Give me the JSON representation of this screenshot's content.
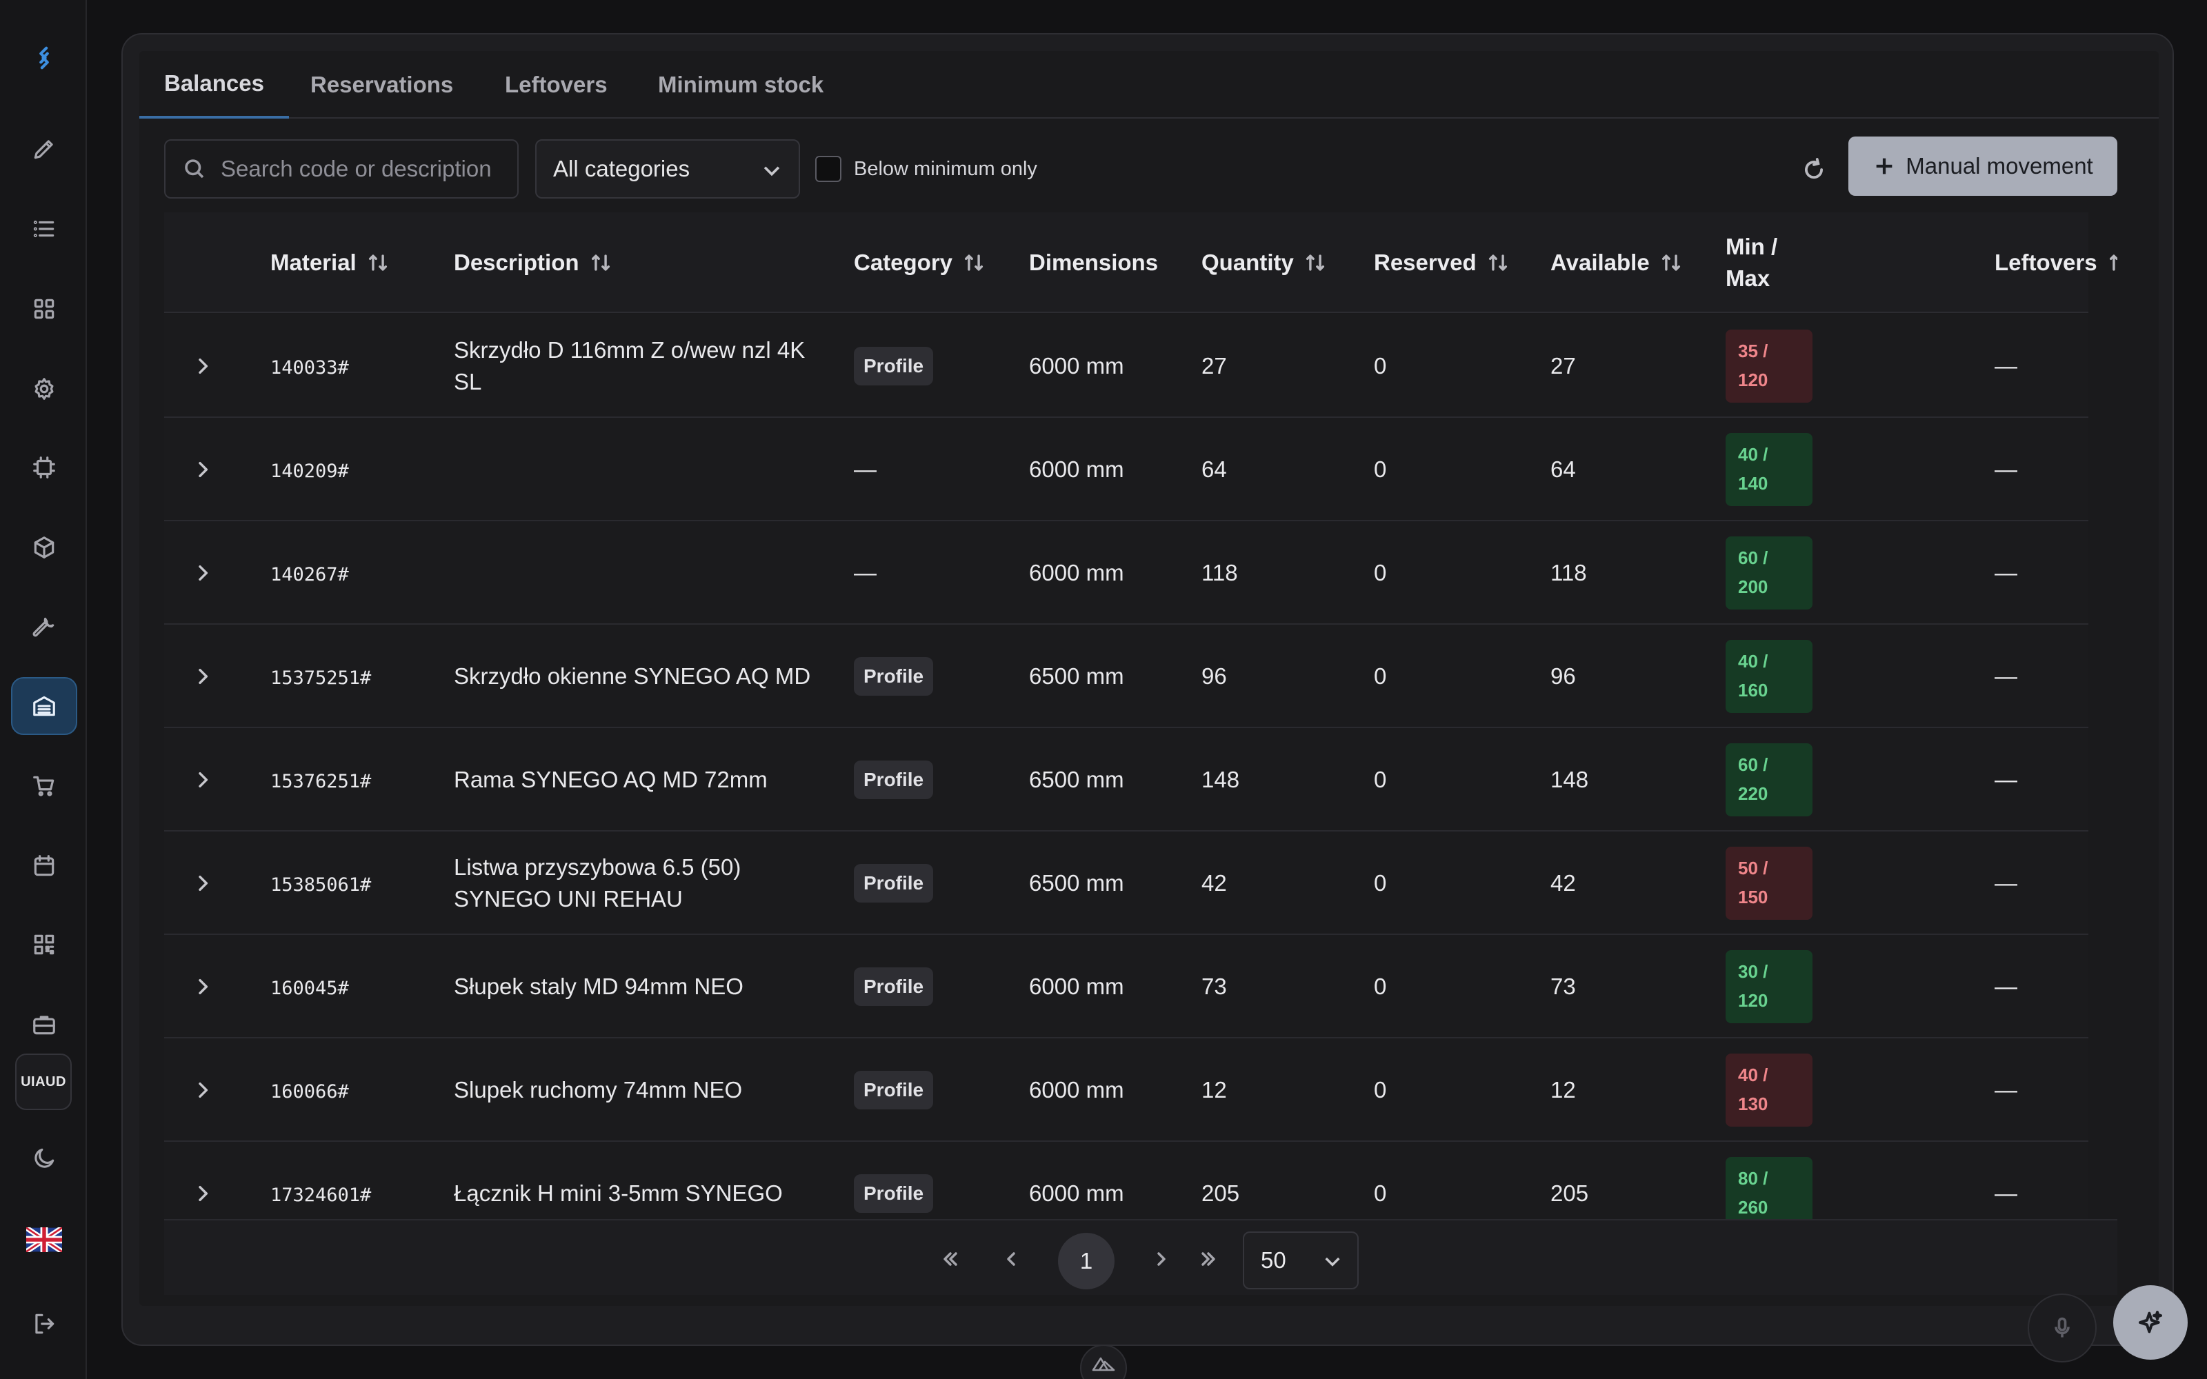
{
  "sidebar": {
    "items": [
      {
        "icon": "app-logo-icon"
      },
      {
        "icon": "pencil-icon"
      },
      {
        "icon": "list-icon"
      },
      {
        "icon": "grid-icon"
      },
      {
        "icon": "gear-icon"
      },
      {
        "icon": "chip-icon"
      },
      {
        "icon": "cube-icon"
      },
      {
        "icon": "wrench-icon"
      },
      {
        "icon": "warehouse-icon",
        "active": true
      },
      {
        "icon": "cart-icon"
      },
      {
        "icon": "calendar-icon"
      },
      {
        "icon": "qr-code-icon"
      },
      {
        "icon": "briefcase-icon"
      },
      {
        "icon": "moon-icon"
      },
      {
        "icon": "uk-flag-icon"
      },
      {
        "icon": "logout-icon"
      }
    ],
    "user_badge": "UIAUD"
  },
  "tabs": {
    "balances": "Balances",
    "reservations": "Reservations",
    "leftovers": "Leftovers",
    "minimum_stock": "Minimum stock",
    "active": "balances"
  },
  "toolbar": {
    "search_placeholder": "Search code or description",
    "search_value": "",
    "category_value": "All categories",
    "below_min_label": "Below minimum only",
    "below_min_checked": false,
    "manual_movement_label": "Manual movement"
  },
  "table": {
    "headers": {
      "material": "Material",
      "description": "Description",
      "category": "Category",
      "dimensions": "Dimensions",
      "quantity": "Quantity",
      "reserved": "Reserved",
      "available": "Available",
      "minmax_line1": "Min /",
      "minmax_line2": "Max",
      "leftovers": "Leftovers"
    },
    "rows": [
      {
        "material": "140033#",
        "description": "Skrzydło D 116mm Z o/wew nzl 4K SL",
        "category": "Profile",
        "dimensions": "6000 mm",
        "quantity": "27",
        "reserved": "0",
        "available": "27",
        "min": "35 /",
        "max": "120",
        "status": "low",
        "leftovers": "—"
      },
      {
        "material": "140209#",
        "description": "",
        "category": "—",
        "dimensions": "6000 mm",
        "quantity": "64",
        "reserved": "0",
        "available": "64",
        "min": "40 /",
        "max": "140",
        "status": "ok",
        "leftovers": "—"
      },
      {
        "material": "140267#",
        "description": "",
        "category": "—",
        "dimensions": "6000 mm",
        "quantity": "118",
        "reserved": "0",
        "available": "118",
        "min": "60 /",
        "max": "200",
        "status": "ok",
        "leftovers": "—"
      },
      {
        "material": "15375251#",
        "description": "Skrzydło okienne SYNEGO AQ MD",
        "category": "Profile",
        "dimensions": "6500 mm",
        "quantity": "96",
        "reserved": "0",
        "available": "96",
        "min": "40 /",
        "max": "160",
        "status": "ok",
        "leftovers": "—"
      },
      {
        "material": "15376251#",
        "description": "Rama SYNEGO AQ MD 72mm",
        "category": "Profile",
        "dimensions": "6500 mm",
        "quantity": "148",
        "reserved": "0",
        "available": "148",
        "min": "60 /",
        "max": "220",
        "status": "ok",
        "leftovers": "—"
      },
      {
        "material": "15385061#",
        "description": "Listwa przyszybowa 6.5 (50) SYNEGO UNI REHAU",
        "category": "Profile",
        "dimensions": "6500 mm",
        "quantity": "42",
        "reserved": "0",
        "available": "42",
        "min": "50 /",
        "max": "150",
        "status": "low",
        "leftovers": "—"
      },
      {
        "material": "160045#",
        "description": "Słupek staly MD 94mm NEO",
        "category": "Profile",
        "dimensions": "6000 mm",
        "quantity": "73",
        "reserved": "0",
        "available": "73",
        "min": "30 /",
        "max": "120",
        "status": "ok",
        "leftovers": "—"
      },
      {
        "material": "160066#",
        "description": "Slupek ruchomy 74mm NEO",
        "category": "Profile",
        "dimensions": "6000 mm",
        "quantity": "12",
        "reserved": "0",
        "available": "12",
        "min": "40 /",
        "max": "130",
        "status": "low",
        "leftovers": "—"
      },
      {
        "material": "17324601#",
        "description": "Łącznik H mini 3-5mm SYNEGO",
        "category": "Profile",
        "dimensions": "6000 mm",
        "quantity": "205",
        "reserved": "0",
        "available": "205",
        "min": "80 /",
        "max": "260",
        "status": "ok",
        "leftovers": "—"
      }
    ]
  },
  "pagination": {
    "current_page": "1",
    "page_size": "50"
  },
  "colors": {
    "accent": "#3a6ea5",
    "low_stock": "#f0868b",
    "ok_stock": "#69d390",
    "primary_button": "#a9adb8"
  }
}
